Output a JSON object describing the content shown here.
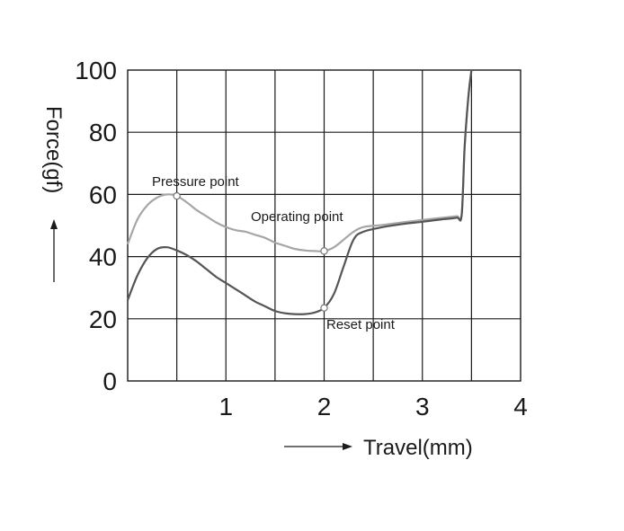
{
  "chart_data": {
    "type": "line",
    "xlabel": "Travel(mm)",
    "ylabel": "Force(gf)",
    "xlim": [
      0,
      4
    ],
    "ylim": [
      0,
      100
    ],
    "x_ticks": [
      1,
      2,
      3,
      4
    ],
    "y_ticks": [
      0,
      20,
      40,
      60,
      80,
      100
    ],
    "x_grid_step": 0.5,
    "y_grid_step": 20,
    "grid": true,
    "series": [
      {
        "color": "#a6a6a6",
        "points": [
          [
            0.0,
            44
          ],
          [
            0.1,
            52
          ],
          [
            0.2,
            56.5
          ],
          [
            0.3,
            59
          ],
          [
            0.4,
            60
          ],
          [
            0.5,
            59.5
          ],
          [
            0.6,
            57.5
          ],
          [
            0.7,
            55
          ],
          [
            0.8,
            53
          ],
          [
            0.9,
            51
          ],
          [
            1.0,
            49.5
          ],
          [
            1.1,
            48.5
          ],
          [
            1.2,
            48
          ],
          [
            1.3,
            47
          ],
          [
            1.4,
            46
          ],
          [
            1.5,
            44.5
          ],
          [
            1.6,
            43.5
          ],
          [
            1.7,
            42.5
          ],
          [
            1.8,
            42
          ],
          [
            1.9,
            41.8
          ],
          [
            2.0,
            41.8
          ],
          [
            2.1,
            43
          ],
          [
            2.2,
            45.5
          ],
          [
            2.3,
            48
          ],
          [
            2.4,
            49.5
          ],
          [
            2.6,
            50.2
          ],
          [
            2.8,
            51
          ],
          [
            3.0,
            51.8
          ],
          [
            3.2,
            52.5
          ],
          [
            3.35,
            53
          ],
          [
            3.4,
            53.5
          ],
          [
            3.43,
            75
          ],
          [
            3.47,
            92
          ],
          [
            3.5,
            100
          ]
        ]
      },
      {
        "color": "#555555",
        "points": [
          [
            0.0,
            26
          ],
          [
            0.1,
            34
          ],
          [
            0.2,
            39.5
          ],
          [
            0.3,
            42.5
          ],
          [
            0.4,
            43
          ],
          [
            0.5,
            42
          ],
          [
            0.6,
            40.5
          ],
          [
            0.7,
            38.5
          ],
          [
            0.8,
            36
          ],
          [
            0.9,
            33.5
          ],
          [
            1.0,
            31.5
          ],
          [
            1.1,
            29.5
          ],
          [
            1.2,
            27.5
          ],
          [
            1.3,
            25.5
          ],
          [
            1.4,
            24
          ],
          [
            1.5,
            22.5
          ],
          [
            1.6,
            21.8
          ],
          [
            1.7,
            21.5
          ],
          [
            1.8,
            21.5
          ],
          [
            1.9,
            22
          ],
          [
            2.0,
            23.5
          ],
          [
            2.1,
            28
          ],
          [
            2.2,
            37
          ],
          [
            2.3,
            45.5
          ],
          [
            2.4,
            48
          ],
          [
            2.6,
            49.5
          ],
          [
            2.8,
            50.5
          ],
          [
            3.0,
            51.2
          ],
          [
            3.2,
            52
          ],
          [
            3.35,
            52.5
          ],
          [
            3.4,
            53.5
          ],
          [
            3.43,
            75
          ],
          [
            3.47,
            92
          ],
          [
            3.5,
            100
          ]
        ]
      }
    ],
    "annotations": [
      {
        "text": "Pressure point",
        "x": 0.5,
        "y": 59.5,
        "marker": true
      },
      {
        "text": "Operating point",
        "x": 2.0,
        "y": 41.8,
        "marker": true
      },
      {
        "text": "Reset point",
        "x": 2.0,
        "y": 23.5,
        "marker": true
      }
    ]
  }
}
